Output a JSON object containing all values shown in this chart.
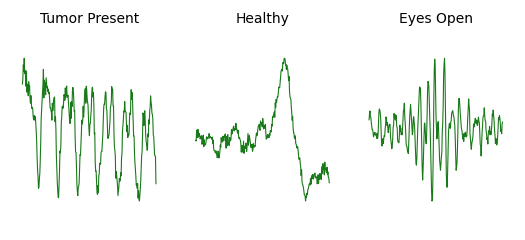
{
  "titles": [
    "Tumor Present",
    "Healthy",
    "Eyes Open"
  ],
  "line_color": "#1a7a1a",
  "line_width": 0.8,
  "background_color": "#ffffff",
  "title_fontsize": 10,
  "figsize": [
    5.25,
    2.4
  ],
  "dpi": 100
}
